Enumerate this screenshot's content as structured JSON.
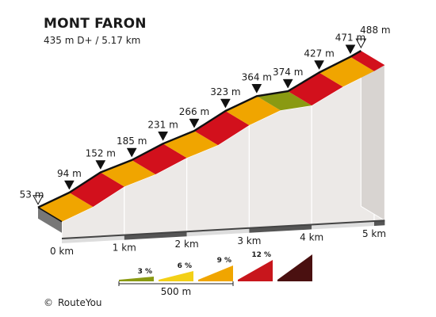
{
  "header": {
    "title": "MONT FARON",
    "subtitle": "435 m D+ / 5.17 km"
  },
  "footer": {
    "copyright_symbol": "©",
    "brand": "RouteYou"
  },
  "chart_data": {
    "type": "area",
    "title": "MONT FARON",
    "subtitle": "435 m D+ / 5.17 km",
    "xlabel": "",
    "ylabel": "",
    "x_unit": "km",
    "y_unit": "m",
    "xlim": [
      0,
      5.17
    ],
    "x_ticks": [
      {
        "x": 0,
        "label": "0 km"
      },
      {
        "x": 1,
        "label": "1 km"
      },
      {
        "x": 2,
        "label": "2 km"
      },
      {
        "x": 3,
        "label": "3 km"
      },
      {
        "x": 4,
        "label": "4 km"
      },
      {
        "x": 5,
        "label": "5 km"
      }
    ],
    "points": [
      {
        "x": 0,
        "y": 53,
        "label": "53 m",
        "marker": "start"
      },
      {
        "x": 0.5,
        "y": 94,
        "label": "94 m",
        "marker": "waypoint"
      },
      {
        "x": 1.0,
        "y": 152,
        "label": "152 m",
        "marker": "waypoint"
      },
      {
        "x": 1.5,
        "y": 185,
        "label": "185 m",
        "marker": "waypoint"
      },
      {
        "x": 2.0,
        "y": 231,
        "label": "231 m",
        "marker": "waypoint"
      },
      {
        "x": 2.5,
        "y": 266,
        "label": "266 m",
        "marker": "waypoint"
      },
      {
        "x": 3.0,
        "y": 323,
        "label": "323 m",
        "marker": "waypoint"
      },
      {
        "x": 3.5,
        "y": 364,
        "label": "364 m",
        "marker": "waypoint"
      },
      {
        "x": 4.0,
        "y": 374,
        "label": "374 m",
        "marker": "waypoint"
      },
      {
        "x": 4.5,
        "y": 427,
        "label": "427 m",
        "marker": "waypoint"
      },
      {
        "x": 5.0,
        "y": 471,
        "label": "471 m",
        "marker": "waypoint"
      },
      {
        "x": 5.17,
        "y": 488,
        "label": "488 m",
        "marker": "end"
      }
    ],
    "segments": [
      {
        "from_km": 0,
        "to_km": 0.5,
        "gradient_class": "9 %",
        "color": "#f0a500"
      },
      {
        "from_km": 0.5,
        "to_km": 1.0,
        "gradient_class": "12 %",
        "color": "#d2101c"
      },
      {
        "from_km": 1.0,
        "to_km": 1.5,
        "gradient_class": "9 %",
        "color": "#f0a500"
      },
      {
        "from_km": 1.5,
        "to_km": 2.0,
        "gradient_class": "12 %",
        "color": "#d2101c"
      },
      {
        "from_km": 2.0,
        "to_km": 2.5,
        "gradient_class": "9 %",
        "color": "#f0a500"
      },
      {
        "from_km": 2.5,
        "to_km": 3.0,
        "gradient_class": "12 %",
        "color": "#d2101c"
      },
      {
        "from_km": 3.0,
        "to_km": 3.5,
        "gradient_class": "9 %",
        "color": "#f0a500"
      },
      {
        "from_km": 3.5,
        "to_km": 4.0,
        "gradient_class": "3 %",
        "color": "#8a9a12"
      },
      {
        "from_km": 4.0,
        "to_km": 4.5,
        "gradient_class": "12 %",
        "color": "#d2101c"
      },
      {
        "from_km": 4.5,
        "to_km": 5.0,
        "gradient_class": "9 %",
        "color": "#f0a500"
      },
      {
        "from_km": 5.0,
        "to_km": 5.17,
        "gradient_class": "12 %",
        "color": "#d2101c"
      }
    ],
    "legend": {
      "placement": "bottom-center",
      "gradients": [
        {
          "label": "3 %",
          "color": "#8a9a12"
        },
        {
          "label": "6 %",
          "color": "#f3d017"
        },
        {
          "label": "9 %",
          "color": "#f0a500"
        },
        {
          "label": "12 %",
          "color": "#c8161c"
        },
        {
          "label": "",
          "color": "#4a1010"
        }
      ],
      "scale_label": "500 m"
    },
    "colors": {
      "side_fill": "#ece9e7",
      "side_stroke": "#ffffff",
      "top_outline": "#111111",
      "base_dark": "#555555",
      "base_light": "#dddddd",
      "marker_fill": "#111111",
      "endpoint_fill": "#ffffff"
    }
  }
}
